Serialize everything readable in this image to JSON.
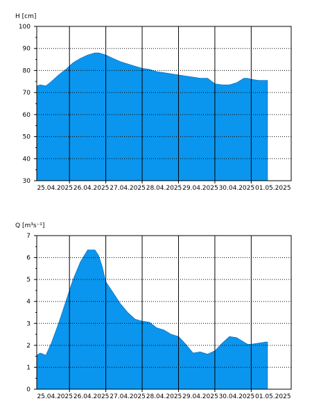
{
  "fill_color": "#0a96ee",
  "chart_data": [
    {
      "type": "area",
      "ylabel": "H [cm]",
      "ylim": [
        30,
        100
      ],
      "yticks": [
        30,
        40,
        50,
        60,
        70,
        80,
        90,
        100
      ],
      "xlim": [
        0,
        7.0
      ],
      "xticks": [
        {
          "label": "25.04.2025",
          "at": 0.5
        },
        {
          "label": "26.04.2025",
          "at": 1.5
        },
        {
          "label": "27.04.2025",
          "at": 2.5
        },
        {
          "label": "28.04.2025",
          "at": 3.5
        },
        {
          "label": "29.04.2025",
          "at": 4.5
        },
        {
          "label": "30.04.2025",
          "at": 5.5
        },
        {
          "label": "01.05.2025",
          "at": 6.5
        }
      ],
      "day_lines": [
        0.9,
        1.9,
        2.9,
        3.9,
        4.9,
        5.9
      ],
      "grid": true,
      "series": [
        {
          "x": [
            0,
            0.1,
            0.25,
            0.4,
            0.6,
            0.8,
            1.0,
            1.2,
            1.4,
            1.6,
            1.7,
            1.8,
            1.9,
            2.1,
            2.3,
            2.5,
            2.7,
            2.9,
            3.1,
            3.3,
            3.5,
            3.7,
            3.9,
            4.1,
            4.3,
            4.5,
            4.7,
            4.9,
            5.1,
            5.3,
            5.5,
            5.6,
            5.7,
            5.8,
            5.9,
            6.1,
            6.3,
            6.35
          ],
          "y": [
            73,
            73.5,
            73,
            75,
            78,
            80.5,
            83.5,
            85.5,
            87,
            88,
            88,
            87.5,
            87,
            85.5,
            84,
            83,
            82,
            81,
            80.5,
            79.5,
            79,
            78.5,
            78,
            77.5,
            77,
            76.5,
            76.5,
            74,
            73.5,
            73.5,
            74.5,
            75.5,
            76.5,
            76.5,
            76,
            75.5,
            75.5,
            75.5
          ]
        }
      ]
    },
    {
      "type": "area",
      "ylabel": "Q [m³s⁻¹]",
      "ylim": [
        0,
        7
      ],
      "yticks": [
        0,
        1,
        2,
        3,
        4,
        5,
        6,
        7
      ],
      "xlim": [
        0,
        7.0
      ],
      "xticks": [
        {
          "label": "25.04.2025",
          "at": 0.5
        },
        {
          "label": "26.04.2025",
          "at": 1.5
        },
        {
          "label": "27.04.2025",
          "at": 2.5
        },
        {
          "label": "28.04.2025",
          "at": 3.5
        },
        {
          "label": "29.04.2025",
          "at": 4.5
        },
        {
          "label": "30.04.2025",
          "at": 5.5
        },
        {
          "label": "01.05.2025",
          "at": 6.5
        }
      ],
      "day_lines": [
        0.9,
        1.9,
        2.9,
        3.9,
        4.9,
        5.9
      ],
      "grid": true,
      "series": [
        {
          "x": [
            0,
            0.1,
            0.25,
            0.4,
            0.6,
            0.8,
            1.0,
            1.2,
            1.4,
            1.6,
            1.7,
            1.8,
            1.9,
            2.1,
            2.3,
            2.5,
            2.7,
            2.9,
            3.1,
            3.3,
            3.5,
            3.7,
            3.9,
            4.1,
            4.3,
            4.5,
            4.7,
            4.9,
            5.1,
            5.3,
            5.5,
            5.6,
            5.7,
            5.8,
            5.9,
            6.1,
            6.3,
            6.35
          ],
          "y": [
            1.55,
            1.65,
            1.55,
            2.1,
            3.0,
            4.0,
            5.0,
            5.8,
            6.35,
            6.35,
            6.1,
            5.6,
            4.9,
            4.4,
            3.9,
            3.5,
            3.2,
            3.1,
            3.05,
            2.8,
            2.7,
            2.5,
            2.4,
            2.05,
            1.65,
            1.7,
            1.6,
            1.75,
            2.1,
            2.4,
            2.35,
            2.25,
            2.15,
            2.05,
            2.05,
            2.1,
            2.15,
            2.15
          ]
        }
      ]
    }
  ]
}
